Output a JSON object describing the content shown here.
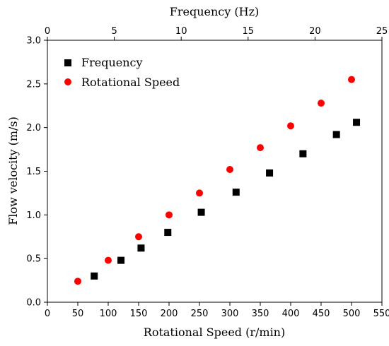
{
  "chart_data": {
    "type": "scatter",
    "title": "",
    "xlabel": "Rotational Speed (r/min)",
    "x2label": "Frequency (Hz)",
    "ylabel": "Flow velocity (m/s)",
    "xlim": [
      0,
      550
    ],
    "x2lim": [
      0,
      25
    ],
    "ylim": [
      0,
      3.0
    ],
    "xticks": [
      "0",
      "50",
      "100",
      "150",
      "200",
      "250",
      "300",
      "350",
      "400",
      "450",
      "500",
      "550"
    ],
    "x2ticks": [
      "0",
      "5",
      "10",
      "15",
      "20",
      "25"
    ],
    "yticks": [
      "0.0",
      "0.5",
      "1.0",
      "1.5",
      "2.0",
      "2.5",
      "3.0"
    ],
    "grid": false,
    "legend_position": "top-left",
    "series": [
      {
        "name": "Frequency",
        "axis": "top",
        "marker": "square",
        "color": "#000000",
        "x": [
          3.5,
          5.5,
          7.0,
          9.0,
          11.5,
          14.1,
          16.6,
          19.1,
          21.6,
          23.1
        ],
        "y": [
          0.3,
          0.48,
          0.62,
          0.8,
          1.03,
          1.26,
          1.48,
          1.7,
          1.92,
          2.06
        ]
      },
      {
        "name": "Rotational Speed",
        "axis": "bottom",
        "marker": "circle",
        "color": "#ff0000",
        "x": [
          50,
          100,
          150,
          200,
          250,
          300,
          350,
          400,
          450,
          500
        ],
        "y": [
          0.24,
          0.48,
          0.75,
          1.0,
          1.25,
          1.52,
          1.77,
          2.02,
          2.28,
          2.55
        ]
      }
    ]
  }
}
